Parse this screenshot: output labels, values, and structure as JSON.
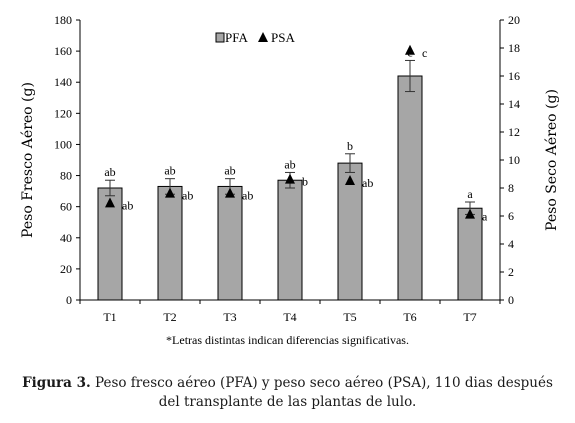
{
  "chart_data": {
    "type": "bar",
    "categories": [
      "T1",
      "T2",
      "T3",
      "T4",
      "T5",
      "T6",
      "T7"
    ],
    "series": [
      {
        "name": "PFA",
        "axis": "left",
        "kind": "bar",
        "values": [
          72,
          73,
          73,
          77,
          88,
          144,
          59
        ],
        "errors": [
          5,
          5,
          5,
          5,
          6,
          10,
          4
        ],
        "letters": [
          "ab",
          "ab",
          "ab",
          "ab",
          "b",
          "c",
          "a"
        ]
      },
      {
        "name": "PSA",
        "axis": "right",
        "kind": "marker",
        "values": [
          6.9,
          7.6,
          7.6,
          8.6,
          8.5,
          17.8,
          6.1
        ],
        "letters": [
          "ab",
          "ab",
          "ab",
          "b",
          "ab",
          "c",
          "a"
        ]
      }
    ],
    "ylabel": "Peso Fresco Aéreo (g)",
    "ylim": [
      0,
      180
    ],
    "yticks": [
      0,
      20,
      40,
      60,
      80,
      100,
      120,
      140,
      160,
      180
    ],
    "y2label": "Peso Seco Aéreo (g)",
    "y2lim": [
      0,
      20
    ],
    "y2ticks": [
      0,
      2,
      4,
      6,
      8,
      10,
      12,
      14,
      16,
      18,
      20
    ],
    "grid": false,
    "legend_position": "top-center",
    "colors": {
      "bar": "#a6a6a6",
      "bar_edge": "#000000",
      "marker": "#000000"
    }
  },
  "footnote": "*Letras distintas indican diferencias significativas.",
  "caption": {
    "label": "Figura 3.",
    "text": " Peso fresco aéreo (PFA) y peso seco aéreo (PSA), 110 dias después del transplante de las plantas de lulo."
  }
}
